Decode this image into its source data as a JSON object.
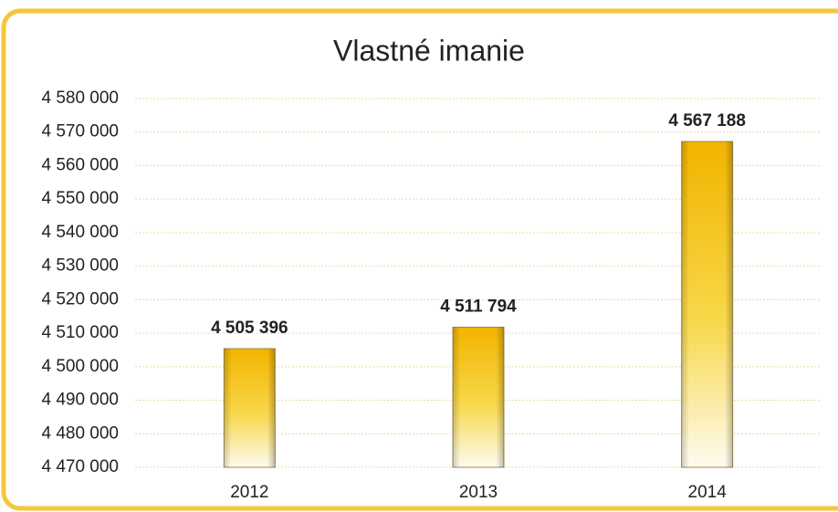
{
  "chart_data": {
    "type": "bar",
    "title": "Vlastné imanie",
    "categories": [
      "2012",
      "2013",
      "2014"
    ],
    "values": [
      4505396,
      4511794,
      4567188
    ],
    "value_labels": [
      "4 505 396",
      "4 511 794",
      "4 567 188"
    ],
    "color": "#f5c21b",
    "ylim": [
      4470000,
      4580000
    ],
    "yticks": [
      {
        "value": 4470000,
        "label": "4 470 000"
      },
      {
        "value": 4480000,
        "label": "4 480 000"
      },
      {
        "value": 4490000,
        "label": "4 490 000"
      },
      {
        "value": 4500000,
        "label": "4 500 000"
      },
      {
        "value": 4510000,
        "label": "4 510 000"
      },
      {
        "value": 4520000,
        "label": "4 520 000"
      },
      {
        "value": 4530000,
        "label": "4 530 000"
      },
      {
        "value": 4540000,
        "label": "4 540 000"
      },
      {
        "value": 4550000,
        "label": "4 550 000"
      },
      {
        "value": 4560000,
        "label": "4 560 000"
      },
      {
        "value": 4570000,
        "label": "4 570 000"
      },
      {
        "value": 4580000,
        "label": "4 580 000"
      }
    ],
    "grid": true
  }
}
